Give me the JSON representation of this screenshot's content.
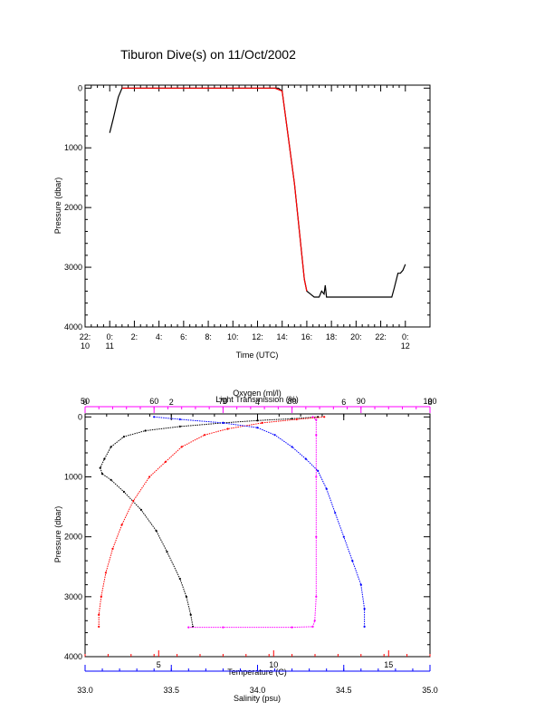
{
  "chart_data": [
    {
      "type": "line",
      "title": "Tiburon Dive(s) on 11/Oct/2002",
      "xlabel": "Time (UTC)",
      "ylabel": "Pressure (dbar)",
      "x_ticks": [
        {
          "value": -2,
          "line1": "22:",
          "line2": "10"
        },
        {
          "value": 0,
          "line1": "0:",
          "line2": "11"
        },
        {
          "value": 2,
          "line1": "2:",
          "line2": ""
        },
        {
          "value": 4,
          "line1": "4:",
          "line2": ""
        },
        {
          "value": 6,
          "line1": "6:",
          "line2": ""
        },
        {
          "value": 8,
          "line1": "8:",
          "line2": ""
        },
        {
          "value": 10,
          "line1": "10:",
          "line2": ""
        },
        {
          "value": 12,
          "line1": "12:",
          "line2": ""
        },
        {
          "value": 14,
          "line1": "14:",
          "line2": ""
        },
        {
          "value": 16,
          "line1": "16:",
          "line2": ""
        },
        {
          "value": 18,
          "line1": "18:",
          "line2": ""
        },
        {
          "value": 20,
          "line1": "20:",
          "line2": ""
        },
        {
          "value": 22,
          "line1": "22:",
          "line2": ""
        },
        {
          "value": 24,
          "line1": "0:",
          "line2": "12"
        }
      ],
      "xlim": [
        -2,
        26
      ],
      "y_ticks": [
        "0",
        "1000",
        "2000",
        "3000",
        "4000"
      ],
      "ylim": [
        4000,
        -50
      ],
      "grid": false,
      "series": [
        {
          "color": "#000000",
          "x": [
            0.0,
            0.3,
            0.7,
            1.0,
            13.4,
            13.7,
            14.0,
            15.0,
            15.8,
            16.0,
            16.3,
            16.6,
            17.0,
            17.2,
            17.4,
            17.5,
            17.6,
            17.8,
            19.0,
            21.0,
            22.9,
            23.1,
            23.4,
            23.6,
            23.8,
            24.0
          ],
          "y": [
            750,
            500,
            150,
            0,
            0,
            0,
            50,
            1600,
            3200,
            3400,
            3450,
            3500,
            3500,
            3400,
            3450,
            3300,
            3500,
            3500,
            3500,
            3500,
            3500,
            3350,
            3100,
            3100,
            3050,
            2950
          ]
        },
        {
          "color": "#ff0000",
          "x": [
            1.0,
            13.4,
            14.0,
            15.0,
            15.8,
            16.0
          ],
          "y": [
            0,
            0,
            50,
            1600,
            3200,
            3400
          ]
        }
      ]
    },
    {
      "type": "scatter",
      "ylabel": "Pressure (dbar)",
      "y_ticks": [
        "0",
        "1000",
        "2000",
        "3000",
        "4000"
      ],
      "ylim": [
        4000,
        -50
      ],
      "grid": false,
      "axes": [
        {
          "name": "Oxygen (ml/l)",
          "position": "top",
          "color": "#000000",
          "range": [
            0,
            8
          ],
          "ticks": [
            "0",
            "2",
            "4",
            "6",
            "8"
          ]
        },
        {
          "name": "Light Transmission (%)",
          "position": "top",
          "color": "#ff00ff",
          "range": [
            50,
            100
          ],
          "ticks": [
            "50",
            "60",
            "70",
            "80",
            "90",
            "100"
          ]
        },
        {
          "name": "Temperature (C)",
          "position": "bottom",
          "color": "#ff0000",
          "range": [
            1.8,
            16.8
          ],
          "ticks": [
            "5",
            "10",
            "15"
          ],
          "tick_values": [
            5,
            10,
            15
          ]
        },
        {
          "name": "Salinity (psu)",
          "position": "bottom",
          "color": "#0000ff",
          "range": [
            33.0,
            35.0
          ],
          "ticks": [
            "33.0",
            "33.5",
            "34.0",
            "34.5",
            "35.0"
          ]
        }
      ],
      "series": [
        {
          "axis": "Oxygen (ml/l)",
          "color": "#000000",
          "points": [
            [
              5.4,
              0
            ],
            [
              4.8,
              30
            ],
            [
              4.0,
              60
            ],
            [
              3.2,
              100
            ],
            [
              2.2,
              160
            ],
            [
              1.4,
              230
            ],
            [
              0.9,
              330
            ],
            [
              0.6,
              500
            ],
            [
              0.45,
              700
            ],
            [
              0.35,
              850
            ],
            [
              0.4,
              950
            ],
            [
              0.6,
              1050
            ],
            [
              0.9,
              1250
            ],
            [
              1.3,
              1550
            ],
            [
              1.65,
              1900
            ],
            [
              1.9,
              2250
            ],
            [
              2.2,
              2700
            ],
            [
              2.35,
              3000
            ],
            [
              2.45,
              3300
            ],
            [
              2.5,
              3500
            ]
          ]
        },
        {
          "axis": "Light Transmission (%)",
          "color": "#ff00ff",
          "points": [
            [
              83,
              0
            ],
            [
              83.5,
              50
            ],
            [
              83.5,
              300
            ],
            [
              83.5,
              1000
            ],
            [
              83.5,
              2000
            ],
            [
              83.5,
              3000
            ],
            [
              83.3,
              3400
            ],
            [
              83.0,
              3500
            ],
            [
              80.0,
              3510
            ],
            [
              70.0,
              3510
            ],
            [
              65.0,
              3510
            ]
          ]
        },
        {
          "axis": "Temperature (C)",
          "color": "#ff0000",
          "points": [
            [
              12.2,
              0
            ],
            [
              11.0,
              40
            ],
            [
              9.5,
              100
            ],
            [
              8.0,
              200
            ],
            [
              7.0,
              300
            ],
            [
              6.0,
              500
            ],
            [
              5.3,
              750
            ],
            [
              4.6,
              1000
            ],
            [
              3.9,
              1400
            ],
            [
              3.4,
              1800
            ],
            [
              3.0,
              2200
            ],
            [
              2.7,
              2600
            ],
            [
              2.5,
              3000
            ],
            [
              2.4,
              3300
            ],
            [
              2.4,
              3500
            ]
          ]
        },
        {
          "axis": "Salinity (psu)",
          "color": "#0000ff",
          "points": [
            [
              33.4,
              0
            ],
            [
              33.55,
              40
            ],
            [
              33.8,
              100
            ],
            [
              34.0,
              180
            ],
            [
              34.1,
              300
            ],
            [
              34.2,
              500
            ],
            [
              34.28,
              700
            ],
            [
              34.35,
              900
            ],
            [
              34.4,
              1200
            ],
            [
              34.45,
              1600
            ],
            [
              34.5,
              2000
            ],
            [
              34.55,
              2400
            ],
            [
              34.6,
              2800
            ],
            [
              34.62,
              3200
            ],
            [
              34.62,
              3500
            ]
          ]
        }
      ]
    }
  ]
}
